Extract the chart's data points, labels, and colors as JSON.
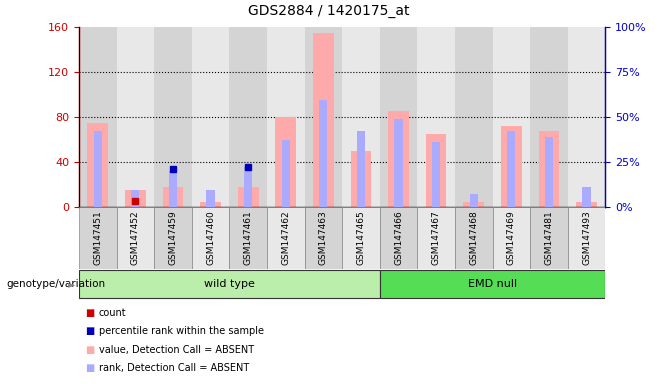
{
  "title": "GDS2884 / 1420175_at",
  "samples": [
    "GSM147451",
    "GSM147452",
    "GSM147459",
    "GSM147460",
    "GSM147461",
    "GSM147462",
    "GSM147463",
    "GSM147465",
    "GSM147466",
    "GSM147467",
    "GSM147468",
    "GSM147469",
    "GSM147481",
    "GSM147493"
  ],
  "absent_value": [
    75,
    15,
    18,
    5,
    18,
    80,
    155,
    50,
    85,
    65,
    5,
    72,
    68,
    5
  ],
  "absent_rank": [
    68,
    15,
    32,
    15,
    36,
    60,
    95,
    68,
    78,
    58,
    12,
    68,
    62,
    18
  ],
  "count_data": [
    null,
    6,
    null,
    null,
    null,
    null,
    null,
    null,
    null,
    null,
    null,
    null,
    null,
    null
  ],
  "rank_data": [
    null,
    null,
    34,
    null,
    36,
    null,
    null,
    null,
    null,
    null,
    null,
    null,
    null,
    null
  ],
  "wild_type_count": 8,
  "emd_null_count": 6,
  "ylim_left": [
    0,
    160
  ],
  "ylim_right": [
    0,
    100
  ],
  "yticks_left": [
    0,
    40,
    80,
    120,
    160
  ],
  "ytick_labels_right": [
    "0%",
    "25%",
    "50%",
    "75%",
    "100%"
  ],
  "left_axis_color": "#cc0000",
  "right_axis_color": "#0000cc",
  "bar_absent_value_color": "#ffaaaa",
  "bar_absent_rank_color": "#aaaaff",
  "bar_count_color": "#cc0000",
  "bar_rank_color": "#0000bb",
  "col_bg_even": "#d4d4d4",
  "col_bg_odd": "#e8e8e8",
  "wild_type_color": "#bbeeaa",
  "emd_null_color": "#55dd55",
  "label_count": "count",
  "label_rank": "percentile rank within the sample",
  "label_absent_value": "value, Detection Call = ABSENT",
  "label_absent_rank": "rank, Detection Call = ABSENT",
  "genotype_label": "genotype/variation",
  "wild_type_label": "wild type",
  "emd_null_label": "EMD null"
}
